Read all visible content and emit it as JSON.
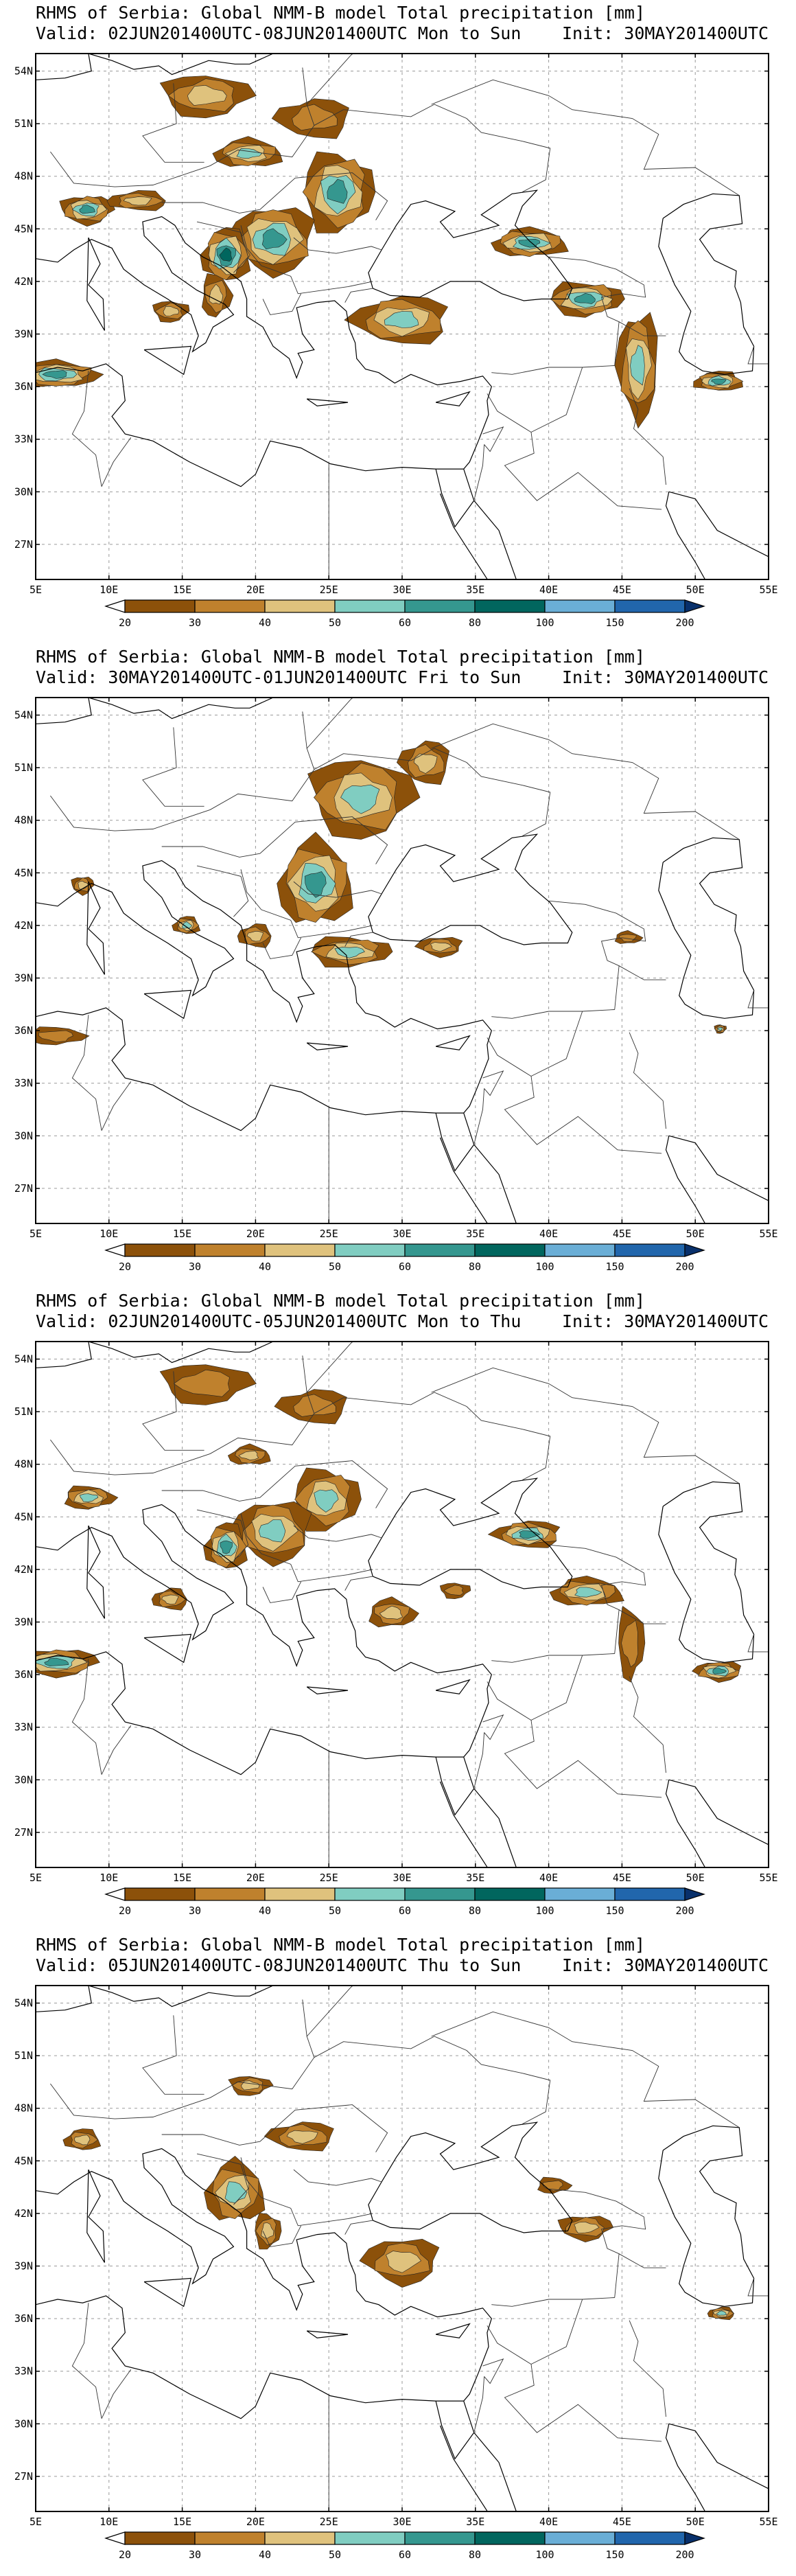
{
  "legend": {
    "unit": "mm",
    "thresholds": [
      "20",
      "30",
      "40",
      "50",
      "60",
      "80",
      "100",
      "150",
      "200"
    ],
    "colors": [
      "#ffffff",
      "#8c510a",
      "#bf812d",
      "#dfc27d",
      "#80cdc1",
      "#35978f",
      "#01665e",
      "#6aaed6",
      "#2166ac",
      "#08306b"
    ]
  },
  "axes": {
    "lon_labels": [
      "5E",
      "10E",
      "15E",
      "20E",
      "25E",
      "30E",
      "35E",
      "40E",
      "45E",
      "50E",
      "55E"
    ],
    "lat_labels": [
      "54N",
      "51N",
      "48N",
      "45N",
      "42N",
      "39N",
      "36N",
      "33N",
      "30N",
      "27N"
    ],
    "lon_range": [
      5,
      55
    ],
    "lat_range": [
      25,
      55
    ]
  },
  "panels": [
    {
      "title": "RHMS of Serbia: Global NMM-B model Total precipitation [mm]",
      "valid": "Valid: 02JUN201400UTC-08JUN201400UTC Mon to Sun",
      "init": "Init: 30MAY201400UTC",
      "cells": [
        {
          "lon": 16.6,
          "lat": 52.6,
          "w": 6,
          "h": 2.4,
          "lv": 3
        },
        {
          "lon": 24,
          "lat": 51.3,
          "w": 5,
          "h": 2.2,
          "lv": 2
        },
        {
          "lon": 19.5,
          "lat": 49.3,
          "w": 4.6,
          "h": 1.6,
          "lv": 4
        },
        {
          "lon": 25.6,
          "lat": 47.1,
          "w": 4.8,
          "h": 4.5,
          "lv": 5
        },
        {
          "lon": 21.2,
          "lat": 44.4,
          "w": 5.6,
          "h": 3.8,
          "lv": 5
        },
        {
          "lon": 18,
          "lat": 43.5,
          "w": 3.2,
          "h": 3,
          "lv": 6
        },
        {
          "lon": 17.3,
          "lat": 41.2,
          "w": 2,
          "h": 2.4,
          "lv": 3
        },
        {
          "lon": 8.5,
          "lat": 46.1,
          "w": 3.6,
          "h": 1.6,
          "lv": 5
        },
        {
          "lon": 12,
          "lat": 46.6,
          "w": 4,
          "h": 1.1,
          "lv": 3
        },
        {
          "lon": 6.4,
          "lat": 36.7,
          "w": 5.6,
          "h": 1.5,
          "lv": 5
        },
        {
          "lon": 14.2,
          "lat": 40.3,
          "w": 2.4,
          "h": 1.2,
          "lv": 3
        },
        {
          "lon": 30,
          "lat": 39.8,
          "w": 6.5,
          "h": 2.7,
          "lv": 4
        },
        {
          "lon": 38.7,
          "lat": 44.2,
          "w": 5,
          "h": 1.6,
          "lv": 5
        },
        {
          "lon": 42.5,
          "lat": 41,
          "w": 5,
          "h": 1.9,
          "lv": 5
        },
        {
          "lon": 46.1,
          "lat": 37.2,
          "w": 2.8,
          "h": 6,
          "lv": 4
        },
        {
          "lon": 51.6,
          "lat": 36.3,
          "w": 3.3,
          "h": 1.1,
          "lv": 5
        }
      ]
    },
    {
      "title": "RHMS of Serbia: Global NMM-B model Total precipitation [mm]",
      "valid": "Valid: 30MAY201400UTC-01JUN201400UTC Fri to Sun",
      "init": "Init: 30MAY201400UTC",
      "cells": [
        {
          "lon": 27.2,
          "lat": 49.3,
          "w": 7,
          "h": 4.5,
          "lv": 4
        },
        {
          "lon": 31.6,
          "lat": 51.3,
          "w": 3.4,
          "h": 2.4,
          "lv": 3
        },
        {
          "lon": 24.1,
          "lat": 44.4,
          "w": 5,
          "h": 4.8,
          "lv": 5
        },
        {
          "lon": 26.4,
          "lat": 40.5,
          "w": 5.5,
          "h": 1.7,
          "lv": 4
        },
        {
          "lon": 32.6,
          "lat": 40.8,
          "w": 3,
          "h": 1.1,
          "lv": 3
        },
        {
          "lon": 15.3,
          "lat": 42,
          "w": 1.8,
          "h": 1,
          "lv": 4
        },
        {
          "lon": 6.4,
          "lat": 35.7,
          "w": 3.8,
          "h": 1,
          "lv": 2
        },
        {
          "lon": 8.2,
          "lat": 44.3,
          "w": 1.5,
          "h": 1,
          "lv": 3
        },
        {
          "lon": 20,
          "lat": 41.4,
          "w": 2.3,
          "h": 1.3,
          "lv": 3
        },
        {
          "lon": 45.4,
          "lat": 41.3,
          "w": 1.8,
          "h": 0.7,
          "lv": 2
        },
        {
          "lon": 51.7,
          "lat": 36.1,
          "w": 0.8,
          "h": 0.5,
          "lv": 4
        }
      ]
    },
    {
      "title": "RHMS of Serbia: Global NMM-B model Total precipitation [mm]",
      "valid": "Valid: 02JUN201400UTC-05JUN201400UTC Mon to Thu",
      "init": "Init: 30MAY201400UTC",
      "cells": [
        {
          "lon": 16.6,
          "lat": 52.6,
          "w": 6,
          "h": 2.3,
          "lv": 2
        },
        {
          "lon": 24,
          "lat": 51.3,
          "w": 4.7,
          "h": 1.9,
          "lv": 2
        },
        {
          "lon": 19.6,
          "lat": 48.5,
          "w": 2.8,
          "h": 1.1,
          "lv": 3
        },
        {
          "lon": 24.8,
          "lat": 46,
          "w": 4.5,
          "h": 3.5,
          "lv": 4
        },
        {
          "lon": 21.2,
          "lat": 44.2,
          "w": 5.2,
          "h": 3.5,
          "lv": 4
        },
        {
          "lon": 18,
          "lat": 43.3,
          "w": 2.8,
          "h": 2.6,
          "lv": 5
        },
        {
          "lon": 8.6,
          "lat": 46.1,
          "w": 3.4,
          "h": 1.3,
          "lv": 4
        },
        {
          "lon": 6.4,
          "lat": 36.7,
          "w": 5.6,
          "h": 1.5,
          "lv": 5
        },
        {
          "lon": 14.2,
          "lat": 40.3,
          "w": 2.4,
          "h": 1.2,
          "lv": 3
        },
        {
          "lon": 29.3,
          "lat": 39.5,
          "w": 3.2,
          "h": 1.6,
          "lv": 3
        },
        {
          "lon": 33.6,
          "lat": 40.8,
          "w": 2,
          "h": 0.9,
          "lv": 2
        },
        {
          "lon": 38.6,
          "lat": 44,
          "w": 4.5,
          "h": 1.5,
          "lv": 5
        },
        {
          "lon": 42.6,
          "lat": 40.7,
          "w": 4.8,
          "h": 1.6,
          "lv": 4
        },
        {
          "lon": 45.6,
          "lat": 37.8,
          "w": 1.8,
          "h": 4,
          "lv": 2
        },
        {
          "lon": 51.6,
          "lat": 36.2,
          "w": 3.2,
          "h": 1.1,
          "lv": 5
        }
      ]
    },
    {
      "title": "RHMS of Serbia: Global NMM-B model Total precipitation [mm]",
      "valid": "Valid: 05JUN201400UTC-08JUN201400UTC Thu to Sun",
      "init": "Init: 30MAY201400UTC",
      "cells": [
        {
          "lon": 19.6,
          "lat": 49.3,
          "w": 2.8,
          "h": 1.1,
          "lv": 3
        },
        {
          "lon": 23.2,
          "lat": 46.4,
          "w": 4.5,
          "h": 1.6,
          "lv": 3
        },
        {
          "lon": 18.6,
          "lat": 43.2,
          "w": 4,
          "h": 3.4,
          "lv": 4
        },
        {
          "lon": 20.8,
          "lat": 41,
          "w": 1.8,
          "h": 2,
          "lv": 3
        },
        {
          "lon": 30,
          "lat": 39.3,
          "w": 5,
          "h": 2.6,
          "lv": 3
        },
        {
          "lon": 8.2,
          "lat": 46.2,
          "w": 2.4,
          "h": 1.2,
          "lv": 3
        },
        {
          "lon": 40.3,
          "lat": 43.6,
          "w": 2.2,
          "h": 0.9,
          "lv": 2
        },
        {
          "lon": 42.5,
          "lat": 41.2,
          "w": 3.6,
          "h": 1.4,
          "lv": 3
        },
        {
          "lon": 51.8,
          "lat": 36.3,
          "w": 1.8,
          "h": 0.7,
          "lv": 4
        }
      ]
    }
  ]
}
